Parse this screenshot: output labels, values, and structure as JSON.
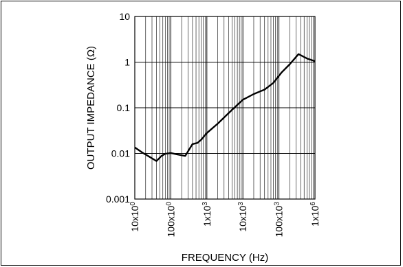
{
  "chart_data": {
    "type": "line",
    "title": "",
    "xlabel": "FREQUENCY (Hz)",
    "ylabel": "OUTPUT IMPEDANCE (Ω)",
    "x_scale": "log",
    "y_scale": "log",
    "xlim": [
      10,
      1000000
    ],
    "ylim": [
      0.001,
      10
    ],
    "grid": true,
    "x_ticks": [
      {
        "value": 10,
        "label_base": "10x10",
        "label_exp": "0"
      },
      {
        "value": 100,
        "label_base": "100x10",
        "label_exp": "0"
      },
      {
        "value": 1000,
        "label_base": "1x10",
        "label_exp": "3"
      },
      {
        "value": 10000,
        "label_base": "10x10",
        "label_exp": "3"
      },
      {
        "value": 100000,
        "label_base": "100x10",
        "label_exp": "3"
      },
      {
        "value": 1000000,
        "label_base": "1x10",
        "label_exp": "6"
      }
    ],
    "y_ticks": [
      {
        "value": 0.001,
        "label": "0.001"
      },
      {
        "value": 0.01,
        "label": "0.01"
      },
      {
        "value": 0.1,
        "label": "0.1"
      },
      {
        "value": 1,
        "label": "1"
      },
      {
        "value": 10,
        "label": "10"
      }
    ],
    "series": [
      {
        "x": [
          10,
          16,
          25,
          40,
          55,
          70,
          100,
          150,
          250,
          400,
          550,
          700,
          1000,
          2000,
          5000,
          10000,
          20000,
          40000,
          70000,
          120000,
          200000,
          350000,
          600000,
          1000000
        ],
        "y": [
          0.0135,
          0.0105,
          0.0085,
          0.0068,
          0.0088,
          0.0098,
          0.0102,
          0.0095,
          0.0088,
          0.016,
          0.017,
          0.02,
          0.028,
          0.045,
          0.09,
          0.15,
          0.2,
          0.25,
          0.35,
          0.6,
          0.9,
          1.5,
          1.2,
          1.05
        ]
      }
    ]
  }
}
